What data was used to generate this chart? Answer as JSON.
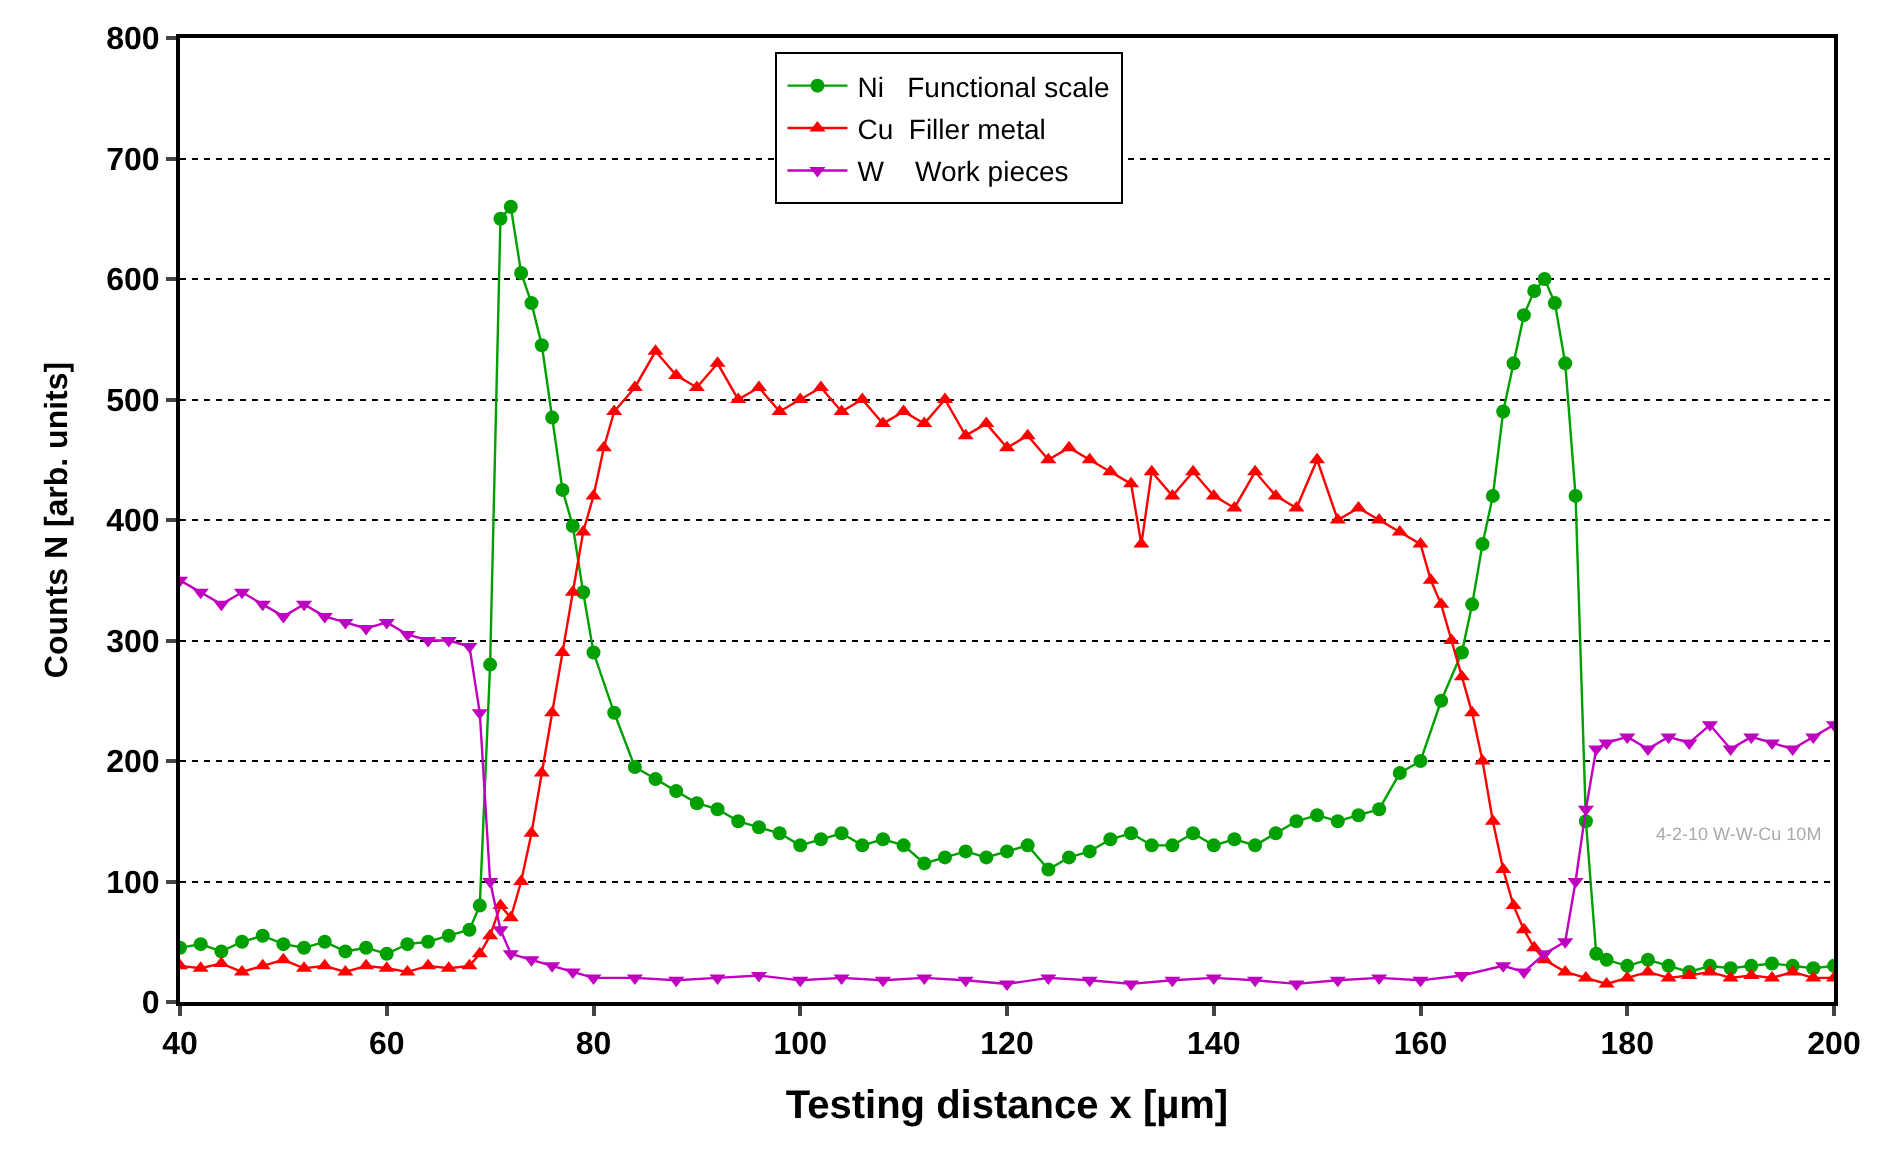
{
  "chart_data": {
    "type": "line",
    "xlabel": "Testing distance x [µm]",
    "ylabel": "Counts N [arb. units]",
    "xlim": [
      40,
      200
    ],
    "xticks": [
      40,
      60,
      80,
      100,
      120,
      140,
      160,
      180,
      200
    ],
    "ylim": [
      0,
      800
    ],
    "yticks": [
      0,
      100,
      200,
      300,
      400,
      500,
      600,
      700,
      800
    ],
    "grid": "y",
    "legend": "top",
    "line_style": "solid",
    "annotations": [
      "4-2-10 W-W-Cu 10M"
    ],
    "series": [
      {
        "name": "Ni   Functional scale",
        "color": "#00a000",
        "marker": "circle",
        "x": [
          40,
          42,
          44,
          46,
          48,
          50,
          52,
          54,
          56,
          58,
          60,
          62,
          64,
          66,
          68,
          69,
          70,
          71,
          72,
          73,
          74,
          75,
          76,
          77,
          78,
          79,
          80,
          82,
          84,
          86,
          88,
          90,
          92,
          94,
          96,
          98,
          100,
          102,
          104,
          106,
          108,
          110,
          112,
          114,
          116,
          118,
          120,
          122,
          124,
          126,
          128,
          130,
          132,
          134,
          136,
          138,
          140,
          142,
          144,
          146,
          148,
          150,
          152,
          154,
          156,
          158,
          160,
          162,
          164,
          165,
          166,
          167,
          168,
          169,
          170,
          171,
          172,
          173,
          174,
          175,
          176,
          177,
          178,
          180,
          182,
          184,
          186,
          188,
          190,
          192,
          194,
          196,
          198,
          200
        ],
        "values": [
          45,
          48,
          42,
          50,
          55,
          48,
          45,
          50,
          42,
          45,
          40,
          48,
          50,
          55,
          60,
          80,
          280,
          650,
          660,
          605,
          580,
          545,
          485,
          425,
          395,
          340,
          290,
          240,
          195,
          185,
          175,
          165,
          160,
          150,
          145,
          140,
          130,
          135,
          140,
          130,
          135,
          130,
          115,
          120,
          125,
          120,
          125,
          130,
          110,
          120,
          125,
          135,
          140,
          130,
          130,
          140,
          130,
          135,
          130,
          140,
          150,
          155,
          150,
          155,
          160,
          190,
          200,
          250,
          290,
          330,
          380,
          420,
          490,
          530,
          570,
          590,
          600,
          580,
          530,
          420,
          150,
          40,
          35,
          30,
          35,
          30,
          25,
          30,
          28,
          30,
          32,
          30,
          28,
          30
        ]
      },
      {
        "name": "Cu  Filler metal",
        "color": "#ff0000",
        "marker": "triangle",
        "x": [
          40,
          42,
          44,
          46,
          48,
          50,
          52,
          54,
          56,
          58,
          60,
          62,
          64,
          66,
          68,
          69,
          70,
          71,
          72,
          73,
          74,
          75,
          76,
          77,
          78,
          79,
          80,
          81,
          82,
          84,
          86,
          88,
          90,
          92,
          94,
          96,
          98,
          100,
          102,
          104,
          106,
          108,
          110,
          112,
          114,
          116,
          118,
          120,
          122,
          124,
          126,
          128,
          130,
          132,
          133,
          134,
          136,
          138,
          140,
          142,
          144,
          146,
          148,
          150,
          152,
          154,
          156,
          158,
          160,
          161,
          162,
          163,
          164,
          165,
          166,
          167,
          168,
          169,
          170,
          171,
          172,
          174,
          176,
          178,
          180,
          182,
          184,
          186,
          188,
          190,
          192,
          194,
          196,
          198,
          200
        ],
        "values": [
          30,
          28,
          32,
          25,
          30,
          35,
          28,
          30,
          25,
          30,
          28,
          25,
          30,
          28,
          30,
          40,
          55,
          80,
          70,
          100,
          140,
          190,
          240,
          290,
          340,
          390,
          420,
          460,
          490,
          510,
          540,
          520,
          510,
          530,
          500,
          510,
          490,
          500,
          510,
          490,
          500,
          480,
          490,
          480,
          500,
          470,
          480,
          460,
          470,
          450,
          460,
          450,
          440,
          430,
          380,
          440,
          420,
          440,
          420,
          410,
          440,
          420,
          410,
          450,
          400,
          410,
          400,
          390,
          380,
          350,
          330,
          300,
          270,
          240,
          200,
          150,
          110,
          80,
          60,
          45,
          35,
          25,
          20,
          15,
          20,
          25,
          20,
          22,
          25,
          20,
          22,
          20,
          25,
          20,
          20
        ]
      },
      {
        "name": "W    Work pieces",
        "color": "#c000c0",
        "marker": "triangle-down",
        "x": [
          40,
          42,
          44,
          46,
          48,
          50,
          52,
          54,
          56,
          58,
          60,
          62,
          64,
          66,
          68,
          69,
          70,
          71,
          72,
          74,
          76,
          78,
          80,
          84,
          88,
          92,
          96,
          100,
          104,
          108,
          112,
          116,
          120,
          124,
          128,
          132,
          136,
          140,
          144,
          148,
          152,
          156,
          160,
          164,
          168,
          170,
          172,
          174,
          175,
          176,
          177,
          178,
          180,
          182,
          184,
          186,
          188,
          190,
          192,
          194,
          196,
          198,
          200
        ],
        "values": [
          350,
          340,
          330,
          340,
          330,
          320,
          330,
          320,
          315,
          310,
          315,
          305,
          300,
          300,
          295,
          240,
          100,
          60,
          40,
          35,
          30,
          25,
          20,
          20,
          18,
          20,
          22,
          18,
          20,
          18,
          20,
          18,
          15,
          20,
          18,
          15,
          18,
          20,
          18,
          15,
          18,
          20,
          18,
          22,
          30,
          25,
          40,
          50,
          100,
          160,
          210,
          215,
          220,
          210,
          220,
          215,
          230,
          210,
          220,
          215,
          210,
          220,
          230
        ]
      }
    ]
  }
}
